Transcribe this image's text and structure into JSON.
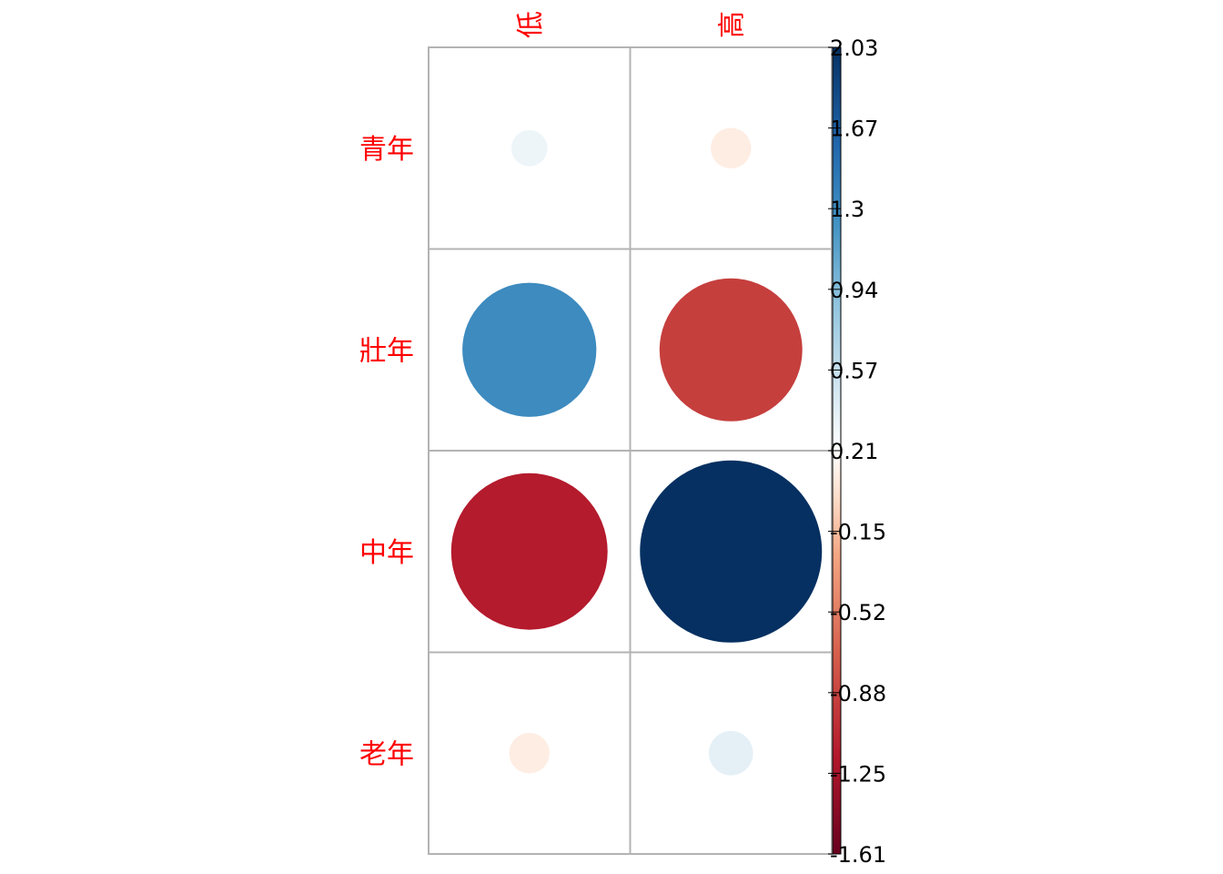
{
  "chart_data": {
    "type": "heatmap",
    "title": "",
    "xlabel": "",
    "ylabel": "",
    "rows": [
      "青年",
      "壯年",
      "中年",
      "老年"
    ],
    "columns": [
      "低",
      "高"
    ],
    "values": [
      [
        0.08,
        -0.1
      ],
      [
        1.1,
        -1.25
      ],
      [
        -1.5,
        2.03
      ],
      [
        -0.1,
        0.12
      ]
    ],
    "colorbar": {
      "min": -1.61,
      "max": 2.03,
      "ticks": [
        "-1.61",
        "-1.25",
        "-0.88",
        "-0.52",
        "-0.15",
        "0.21",
        "0.57",
        "0.94",
        "1.3",
        "1.67",
        "2.03"
      ]
    },
    "colors": {
      "negative_end": "#67001f",
      "mid_neg": "#d6604d",
      "light_neg": "#fddbc7",
      "neutral": "#ffffff",
      "light_pos": "#d1e5f0",
      "mid_pos": "#4393c3",
      "positive_end": "#053061",
      "label_color": "#ff0000",
      "grid": "#b3b3b3"
    },
    "grid": true
  }
}
